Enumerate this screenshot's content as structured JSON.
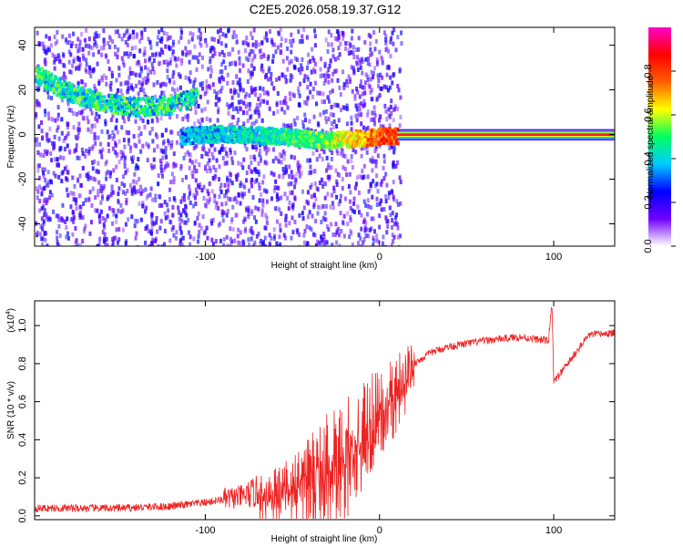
{
  "title": "C2E5.2026.058.19.37.G12",
  "chart_data": [
    {
      "type": "heatmap",
      "name": "spectrogram",
      "xlabel": "Height of straight line (km)",
      "ylabel": "Frequency (Hz)",
      "xlim": [
        -198,
        135
      ],
      "ylim": [
        -50,
        48
      ],
      "x_ticks": [
        -100,
        0,
        100
      ],
      "x_tick_labels": [
        "-100",
        "0",
        "100"
      ],
      "y_ticks": [
        -40,
        -20,
        0,
        20,
        40
      ],
      "y_tick_labels": [
        "-40",
        "-20",
        "0",
        "20",
        "40"
      ],
      "colorbar": {
        "label": "Normalized spectral amplitude",
        "range": [
          0,
          1
        ],
        "ticks": [
          0.0,
          0.2,
          0.4,
          0.6,
          0.8
        ],
        "tick_labels": [
          "0.0",
          "0.2",
          "0.4",
          "0.6",
          "0.8"
        ],
        "colors": [
          "#ffffff",
          "#7000ff",
          "#0000ff",
          "#00ccff",
          "#00ff60",
          "#ffff00",
          "#ff6000",
          "#ff0000",
          "#ff00cc"
        ]
      },
      "features": [
        {
          "name": "upper branch",
          "x": [
            -198,
            -180,
            -160,
            -140,
            -120,
            -105
          ],
          "y": [
            28,
            20,
            15,
            13,
            14,
            18
          ],
          "amplitude": 0.4
        },
        {
          "name": "main branch",
          "x": [
            -115,
            -90,
            -60,
            -30,
            -10,
            0,
            135
          ],
          "y": [
            0,
            1,
            0,
            -2,
            -1,
            0,
            0
          ],
          "amplitude": [
            0.35,
            0.4,
            0.45,
            0.55,
            0.7,
            0.8,
            0.9
          ]
        }
      ]
    },
    {
      "type": "line",
      "name": "snr",
      "xlabel": "Height of straight line (km)",
      "ylabel": "SNR (10 * v/v)",
      "y_scale_label": "(x10",
      "y_scale_exp": "4",
      "y_scale_close": ")",
      "xlim": [
        -198,
        135
      ],
      "ylim": [
        -0.02,
        1.13
      ],
      "x_ticks": [
        -100,
        0,
        100
      ],
      "x_tick_labels": [
        "-100",
        "0",
        "100"
      ],
      "y_ticks": [
        0.0,
        0.2,
        0.4,
        0.6,
        0.8,
        1.0
      ],
      "y_tick_labels": [
        "0.0",
        "0.2",
        "0.4",
        "0.6",
        "0.8",
        "1.0"
      ],
      "color": "#ee2222",
      "series": [
        {
          "name": "SNR",
          "x": [
            -198,
            -150,
            -120,
            -100,
            -80,
            -60,
            -50,
            -40,
            -30,
            -20,
            -10,
            -5,
            0,
            5,
            10,
            15,
            20,
            30,
            40,
            60,
            80,
            97,
            99,
            100,
            120,
            135
          ],
          "y": [
            0.04,
            0.04,
            0.05,
            0.07,
            0.1,
            0.15,
            0.2,
            0.25,
            0.33,
            0.4,
            0.5,
            0.55,
            0.6,
            0.65,
            0.7,
            0.75,
            0.8,
            0.86,
            0.89,
            0.92,
            0.94,
            0.92,
            1.13,
            0.7,
            0.95,
            0.96
          ]
        }
      ]
    }
  ]
}
